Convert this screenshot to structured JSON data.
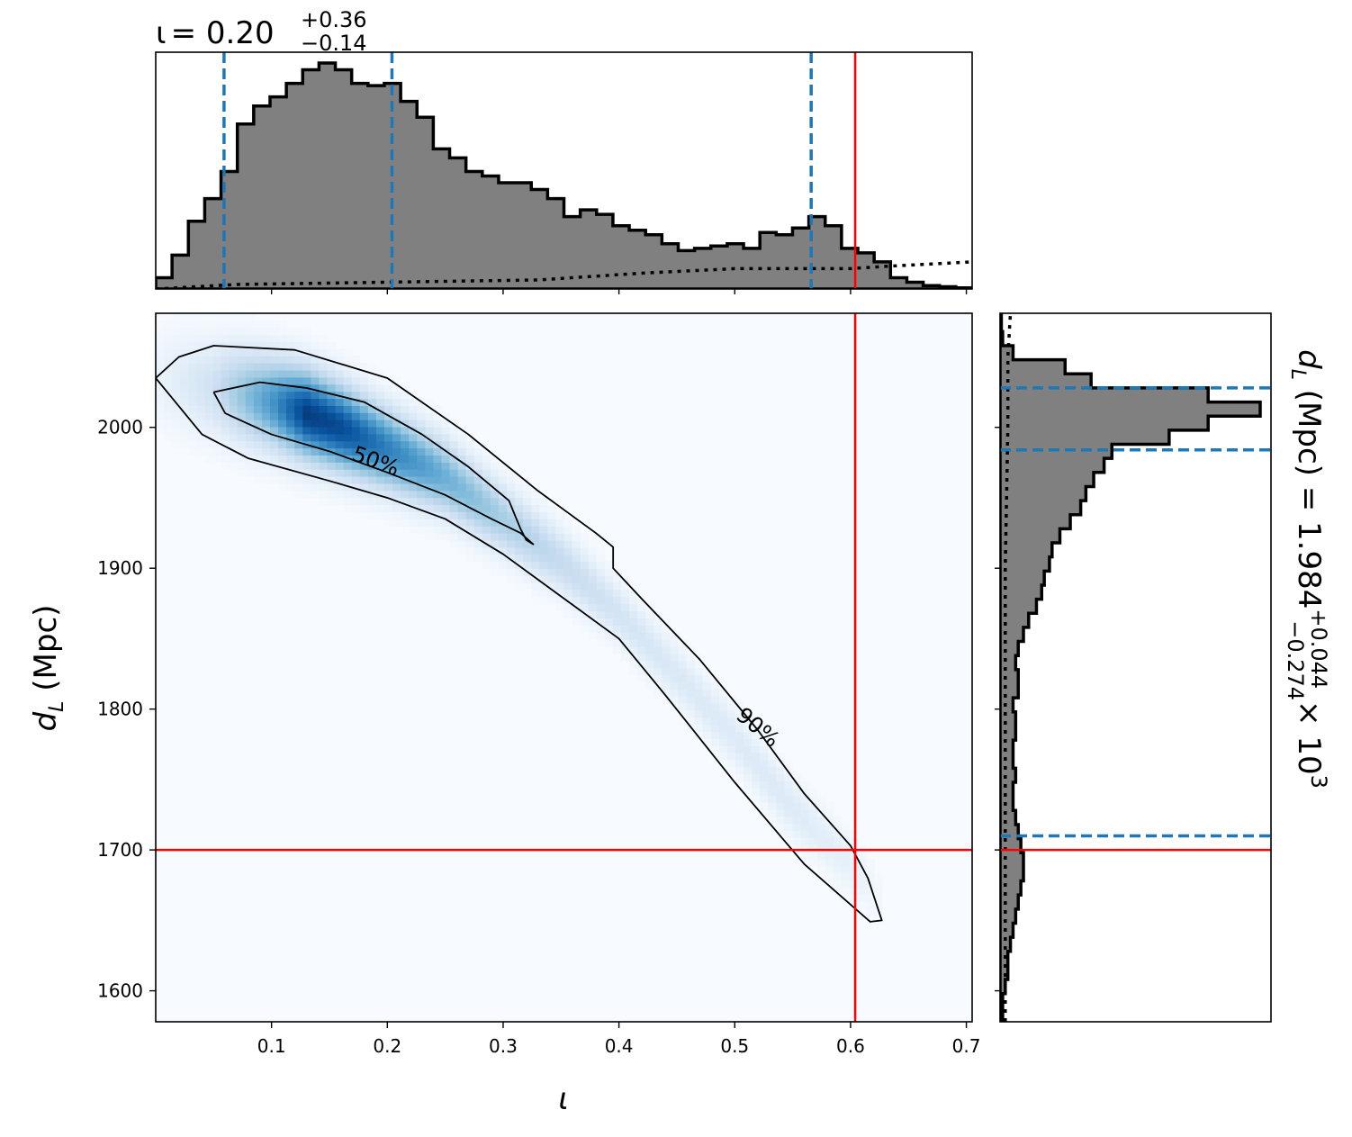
{
  "chart_data": [
    {
      "type": "histogram",
      "panel": "top-marginal",
      "title": {
        "symbol": "ι",
        "median": "0.20",
        "plus": "+0.36",
        "minus": "−0.14"
      },
      "x": {
        "lim": [
          0.0,
          0.705
        ]
      },
      "bin_edges": [
        0.0,
        0.0141,
        0.0282,
        0.0423,
        0.0564,
        0.0705,
        0.0846,
        0.0987,
        0.1128,
        0.1269,
        0.141,
        0.1551,
        0.1692,
        0.1833,
        0.1974,
        0.2115,
        0.2256,
        0.2397,
        0.2538,
        0.2679,
        0.282,
        0.2961,
        0.3102,
        0.3243,
        0.3384,
        0.3525,
        0.3666,
        0.3807,
        0.3948,
        0.4089,
        0.423,
        0.4371,
        0.4512,
        0.4653,
        0.4794,
        0.4935,
        0.5076,
        0.5217,
        0.5358,
        0.5499,
        0.564,
        0.5781,
        0.5922,
        0.6063,
        0.6204,
        0.6345,
        0.6486,
        0.6627,
        0.6768,
        0.6909,
        0.705
      ],
      "density": [
        0.05,
        0.15,
        0.3,
        0.4,
        0.52,
        0.73,
        0.81,
        0.85,
        0.91,
        0.97,
        1.0,
        0.97,
        0.91,
        0.9,
        0.91,
        0.83,
        0.76,
        0.62,
        0.58,
        0.52,
        0.5,
        0.47,
        0.47,
        0.44,
        0.4,
        0.32,
        0.35,
        0.33,
        0.28,
        0.26,
        0.24,
        0.2,
        0.17,
        0.18,
        0.19,
        0.2,
        0.18,
        0.25,
        0.24,
        0.27,
        0.32,
        0.28,
        0.18,
        0.16,
        0.12,
        0.05,
        0.03,
        0.015,
        0.01,
        0.005
      ],
      "prior_dotted": [
        [
          0.0,
          0.0
        ],
        [
          0.07,
          0.02
        ],
        [
          0.2,
          0.03
        ],
        [
          0.33,
          0.04
        ],
        [
          0.42,
          0.07
        ],
        [
          0.46,
          0.08
        ],
        [
          0.5,
          0.09
        ],
        [
          0.6,
          0.09
        ],
        [
          0.63,
          0.1
        ],
        [
          0.705,
          0.12
        ]
      ],
      "quantile_lines": [
        0.059,
        0.204,
        0.566
      ],
      "truth": 0.604,
      "xticks": [
        0.1,
        0.2,
        0.3,
        0.4,
        0.5,
        0.6,
        0.7
      ]
    },
    {
      "type": "heatmap",
      "panel": "joint",
      "xlabel": "ι",
      "ylabel": {
        "symbol": "d",
        "sub": "L",
        "unit": "(Mpc)"
      },
      "xlim": [
        0.0,
        0.705
      ],
      "ylim": [
        1578,
        2081
      ],
      "xticks": [
        0.1,
        0.2,
        0.3,
        0.4,
        0.5,
        0.6,
        0.7
      ],
      "xtick_labels": [
        "0.1",
        "0.2",
        "0.3",
        "0.4",
        "0.5",
        "0.6",
        "0.7"
      ],
      "yticks": [
        1600,
        1700,
        1800,
        1900,
        2000
      ],
      "ytick_labels": [
        "1600",
        "1700",
        "1800",
        "1900",
        "2000"
      ],
      "colormap": "Blues",
      "ridge": [
        [
          0.0,
          2036,
          0.05
        ],
        [
          0.05,
          2028,
          0.2
        ],
        [
          0.1,
          2018,
          0.6
        ],
        [
          0.13,
          2010,
          0.95
        ],
        [
          0.16,
          2000,
          0.9
        ],
        [
          0.2,
          1985,
          0.7
        ],
        [
          0.25,
          1965,
          0.5
        ],
        [
          0.3,
          1935,
          0.35
        ],
        [
          0.35,
          1905,
          0.25
        ],
        [
          0.4,
          1868,
          0.18
        ],
        [
          0.45,
          1825,
          0.14
        ],
        [
          0.5,
          1780,
          0.13
        ],
        [
          0.55,
          1730,
          0.13
        ],
        [
          0.6,
          1690,
          0.08
        ],
        [
          0.63,
          1660,
          0.02
        ]
      ],
      "contours": [
        {
          "label": "90%",
          "label_at": [
            0.52,
            1787
          ],
          "label_angle": 40,
          "points": [
            [
              0.0,
              2035
            ],
            [
              0.02,
              2050
            ],
            [
              0.05,
              2058
            ],
            [
              0.12,
              2055
            ],
            [
              0.2,
              2035
            ],
            [
              0.27,
              1995
            ],
            [
              0.33,
              1955
            ],
            [
              0.38,
              1925
            ],
            [
              0.395,
              1915
            ],
            [
              0.395,
              1900
            ],
            [
              0.42,
              1878
            ],
            [
              0.47,
              1835
            ],
            [
              0.52,
              1785
            ],
            [
              0.56,
              1740
            ],
            [
              0.6,
              1703
            ],
            [
              0.615,
              1680
            ],
            [
              0.627,
              1650
            ],
            [
              0.617,
              1649
            ],
            [
              0.56,
              1690
            ],
            [
              0.5,
              1748
            ],
            [
              0.44,
              1810
            ],
            [
              0.4,
              1850
            ],
            [
              0.35,
              1880
            ],
            [
              0.3,
              1910
            ],
            [
              0.25,
              1935
            ],
            [
              0.2,
              1950
            ],
            [
              0.15,
              1962
            ],
            [
              0.08,
              1978
            ],
            [
              0.04,
              1995
            ],
            [
              0.0,
              2035
            ]
          ]
        },
        {
          "label": "50%",
          "label_at": [
            0.19,
            1976
          ],
          "label_angle": 20,
          "points": [
            [
              0.05,
              2025
            ],
            [
              0.09,
              2032
            ],
            [
              0.13,
              2028
            ],
            [
              0.18,
              2018
            ],
            [
              0.23,
              1995
            ],
            [
              0.27,
              1972
            ],
            [
              0.305,
              1948
            ],
            [
              0.315,
              1928
            ],
            [
              0.32,
              1920
            ],
            [
              0.326,
              1917
            ],
            [
              0.315,
              1925
            ],
            [
              0.29,
              1935
            ],
            [
              0.25,
              1952
            ],
            [
              0.2,
              1968
            ],
            [
              0.15,
              1983
            ],
            [
              0.1,
              1995
            ],
            [
              0.06,
              2010
            ],
            [
              0.05,
              2025
            ]
          ]
        }
      ],
      "truth": {
        "x": 0.604,
        "y": 1700
      }
    },
    {
      "type": "histogram",
      "panel": "right-marginal",
      "orientation": "horizontal",
      "ylabel": {
        "symbol": "d",
        "sub": "L",
        "unit": "(Mpc)",
        "median": "1.984",
        "plus": "+0.044",
        "minus": "−0.274",
        "exponent": "× 10",
        "power": "3"
      },
      "ylim": [
        1578,
        2081
      ],
      "bin_edges": [
        1578,
        1588,
        1598,
        1608,
        1618,
        1628,
        1638,
        1648,
        1658,
        1668,
        1678,
        1688,
        1698,
        1708,
        1718,
        1728,
        1738,
        1748,
        1758,
        1768,
        1778,
        1788,
        1798,
        1808,
        1818,
        1828,
        1838,
        1848,
        1858,
        1868,
        1878,
        1888,
        1898,
        1908,
        1918,
        1928,
        1938,
        1948,
        1958,
        1968,
        1978,
        1988,
        1998,
        2008,
        2018,
        2028,
        2038,
        2048,
        2058,
        2068,
        2081
      ],
      "density": [
        0.01,
        0.01,
        0.02,
        0.03,
        0.03,
        0.04,
        0.05,
        0.06,
        0.07,
        0.08,
        0.09,
        0.09,
        0.08,
        0.07,
        0.06,
        0.05,
        0.05,
        0.06,
        0.05,
        0.05,
        0.06,
        0.06,
        0.05,
        0.07,
        0.07,
        0.06,
        0.07,
        0.09,
        0.11,
        0.14,
        0.16,
        0.17,
        0.19,
        0.2,
        0.23,
        0.27,
        0.31,
        0.33,
        0.36,
        0.4,
        0.43,
        0.65,
        0.8,
        1.0,
        0.8,
        0.35,
        0.25,
        0.05,
        0.01,
        0.005
      ],
      "prior_dotted": [
        [
          0.02,
          1578
        ],
        [
          0.02,
          1720
        ],
        [
          0.02,
          1900
        ],
        [
          0.03,
          2000
        ],
        [
          0.03,
          2050
        ],
        [
          0.04,
          2081
        ]
      ],
      "quantile_lines": [
        1710,
        1984,
        2028
      ],
      "truth": 1700,
      "yticks": [
        1600,
        1700,
        1800,
        1900,
        2000
      ]
    }
  ]
}
